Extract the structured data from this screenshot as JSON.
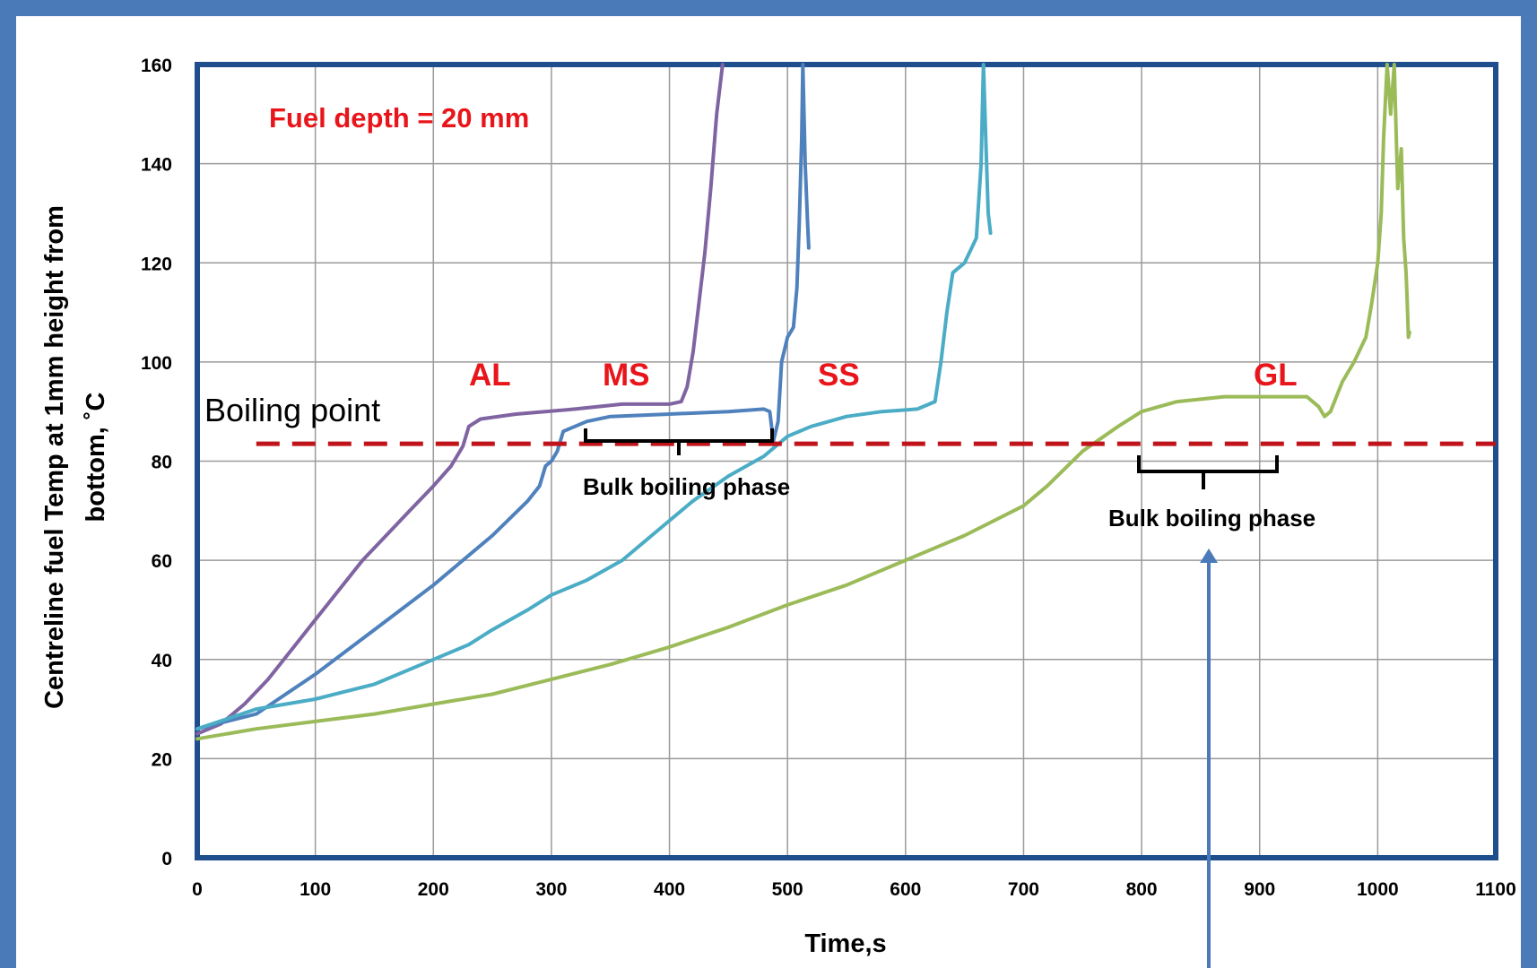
{
  "chart_data": {
    "type": "line",
    "title": "",
    "xlabel": "Time,s",
    "ylabel_lines": [
      "Centreline fuel Temp at 1mm height from",
      "bottom, ˚C"
    ],
    "xlim": [
      0,
      1100
    ],
    "ylim": [
      0,
      160
    ],
    "x_ticks": [
      "0",
      "100",
      "200",
      "300",
      "400",
      "500",
      "600",
      "700",
      "800",
      "900",
      "1000",
      "1100"
    ],
    "y_ticks": [
      "0",
      "20",
      "40",
      "60",
      "80",
      "100",
      "120",
      "140",
      "160"
    ],
    "grid": true,
    "legend": "none",
    "colors": {
      "AL": "#8064a2",
      "MS": "#4f81bd",
      "SS": "#4bacc6",
      "GL": "#9bbb59",
      "boiling": "#c0141a",
      "annotation_red": "#e8151a",
      "frame": "#4a7ab8",
      "plot_border": "#1f4e8c"
    },
    "series": [
      {
        "name": "AL",
        "color": "#8064a2",
        "points": [
          [
            0,
            25
          ],
          [
            20,
            27
          ],
          [
            40,
            31
          ],
          [
            60,
            36
          ],
          [
            80,
            42
          ],
          [
            100,
            48
          ],
          [
            120,
            54
          ],
          [
            140,
            60
          ],
          [
            160,
            65
          ],
          [
            180,
            70
          ],
          [
            200,
            75
          ],
          [
            215,
            79
          ],
          [
            225,
            83
          ],
          [
            230,
            87
          ],
          [
            240,
            88.5
          ],
          [
            270,
            89.5
          ],
          [
            320,
            90.5
          ],
          [
            360,
            91.5
          ],
          [
            400,
            91.5
          ],
          [
            410,
            92
          ],
          [
            415,
            95
          ],
          [
            420,
            102
          ],
          [
            425,
            112
          ],
          [
            430,
            122
          ],
          [
            435,
            135
          ],
          [
            440,
            150
          ],
          [
            445,
            160
          ]
        ]
      },
      {
        "name": "MS",
        "color": "#4f81bd",
        "points": [
          [
            0,
            26
          ],
          [
            50,
            29
          ],
          [
            100,
            37
          ],
          [
            150,
            46
          ],
          [
            200,
            55
          ],
          [
            250,
            65
          ],
          [
            280,
            72
          ],
          [
            290,
            75
          ],
          [
            295,
            79
          ],
          [
            300,
            80
          ],
          [
            305,
            82
          ],
          [
            310,
            86
          ],
          [
            330,
            88
          ],
          [
            350,
            89
          ],
          [
            400,
            89.5
          ],
          [
            450,
            90
          ],
          [
            480,
            90.5
          ],
          [
            485,
            90
          ],
          [
            488,
            84
          ],
          [
            492,
            88
          ],
          [
            495,
            100
          ],
          [
            500,
            105
          ],
          [
            505,
            107
          ],
          [
            508,
            115
          ],
          [
            510,
            128
          ],
          [
            512,
            145
          ],
          [
            513,
            160
          ],
          [
            515,
            140
          ],
          [
            517,
            128
          ],
          [
            518,
            123
          ]
        ]
      },
      {
        "name": "SS",
        "color": "#4bacc6",
        "points": [
          [
            0,
            26
          ],
          [
            50,
            30
          ],
          [
            100,
            32
          ],
          [
            150,
            35
          ],
          [
            200,
            40
          ],
          [
            230,
            43
          ],
          [
            250,
            46
          ],
          [
            280,
            50
          ],
          [
            300,
            53
          ],
          [
            330,
            56
          ],
          [
            360,
            60
          ],
          [
            380,
            64
          ],
          [
            400,
            68
          ],
          [
            420,
            72
          ],
          [
            450,
            77
          ],
          [
            480,
            81
          ],
          [
            500,
            85
          ],
          [
            520,
            87
          ],
          [
            550,
            89
          ],
          [
            580,
            90
          ],
          [
            610,
            90.5
          ],
          [
            625,
            92
          ],
          [
            630,
            100
          ],
          [
            635,
            110
          ],
          [
            640,
            118
          ],
          [
            650,
            120
          ],
          [
            660,
            125
          ],
          [
            664,
            140
          ],
          [
            666,
            160
          ],
          [
            668,
            145
          ],
          [
            670,
            130
          ],
          [
            672,
            126
          ]
        ]
      },
      {
        "name": "GL",
        "color": "#9bbb59",
        "points": [
          [
            0,
            24
          ],
          [
            50,
            26
          ],
          [
            100,
            27.5
          ],
          [
            150,
            29
          ],
          [
            200,
            31
          ],
          [
            250,
            33
          ],
          [
            300,
            36
          ],
          [
            350,
            39
          ],
          [
            400,
            42.5
          ],
          [
            450,
            46.5
          ],
          [
            500,
            51
          ],
          [
            550,
            55
          ],
          [
            600,
            60
          ],
          [
            650,
            65
          ],
          [
            700,
            71
          ],
          [
            720,
            75
          ],
          [
            750,
            82
          ],
          [
            780,
            87
          ],
          [
            800,
            90
          ],
          [
            830,
            92
          ],
          [
            870,
            93
          ],
          [
            900,
            93
          ],
          [
            940,
            93
          ],
          [
            950,
            91
          ],
          [
            955,
            89
          ],
          [
            960,
            90
          ],
          [
            970,
            96
          ],
          [
            980,
            100
          ],
          [
            990,
            105
          ],
          [
            995,
            112
          ],
          [
            1000,
            120
          ],
          [
            1003,
            130
          ],
          [
            1005,
            145
          ],
          [
            1008,
            160
          ],
          [
            1011,
            150
          ],
          [
            1014,
            160
          ],
          [
            1017,
            135
          ],
          [
            1020,
            143
          ],
          [
            1022,
            125
          ],
          [
            1024,
            118
          ],
          [
            1025,
            112
          ],
          [
            1026,
            105
          ],
          [
            1027,
            106
          ]
        ]
      },
      {
        "name": "Boiling point",
        "color": "#c0141a",
        "dashed": true,
        "points": [
          [
            50,
            83.5
          ],
          [
            1100,
            83.5
          ]
        ]
      }
    ],
    "annotations": [
      {
        "key": "fuel_depth",
        "text": "Fuel depth = 20 mm"
      },
      {
        "key": "al",
        "text": "AL"
      },
      {
        "key": "ms",
        "text": "MS"
      },
      {
        "key": "ss",
        "text": "SS"
      },
      {
        "key": "gl",
        "text": "GL"
      },
      {
        "key": "boiling_point",
        "text": "Boiling point"
      },
      {
        "key": "bulk1",
        "text": "Bulk boiling phase"
      },
      {
        "key": "bulk2",
        "text": "Bulk boiling phase"
      }
    ]
  }
}
